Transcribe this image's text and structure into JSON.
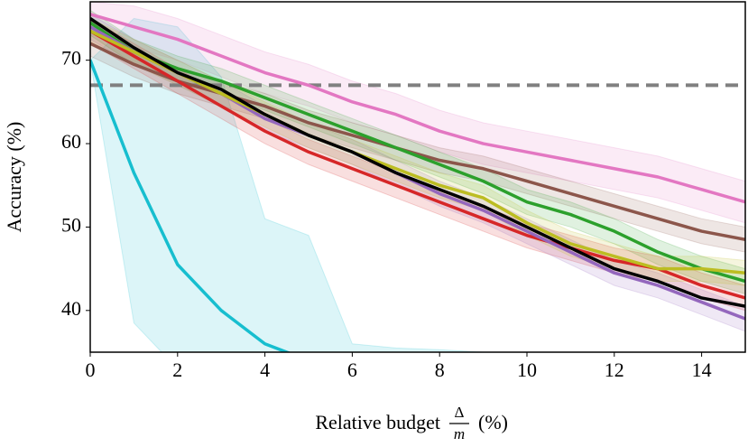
{
  "chart_data": {
    "type": "line",
    "ylabel": "Accuracy (%)",
    "xlabel": {
      "text": "Relative budget",
      "num": "Δ",
      "den": "m",
      "unit": "(%)"
    },
    "x": [
      0,
      1,
      2,
      3,
      4,
      5,
      6,
      7,
      8,
      9,
      10,
      11,
      12,
      13,
      14,
      15
    ],
    "xlim": [
      0,
      15
    ],
    "xticks": [
      0,
      2,
      4,
      6,
      8,
      10,
      12,
      14
    ],
    "ylim": [
      35,
      77
    ],
    "yticks": [
      40,
      50,
      60,
      70
    ],
    "reference_line": {
      "value": 67,
      "color": "#808080",
      "dashed": true
    },
    "series": [
      {
        "color": "#17becf",
        "values": [
          70,
          56.5,
          45.5,
          40,
          36,
          34,
          null,
          null,
          null,
          null,
          null,
          null,
          null,
          null,
          null,
          null
        ],
        "upper": [
          70,
          75,
          74,
          68,
          51,
          49,
          36,
          35.5,
          35.3,
          35,
          null,
          null,
          null,
          null,
          null,
          null
        ],
        "lower": [
          70,
          38.5,
          33,
          30,
          30,
          30,
          30,
          30,
          30,
          30,
          null,
          null,
          null,
          null,
          null,
          null
        ]
      },
      {
        "color": "#e377c2",
        "values": [
          75.5,
          74,
          72.5,
          70.5,
          68.5,
          67,
          65,
          63.5,
          61.5,
          60,
          59,
          58,
          57,
          56,
          54.5,
          53
        ],
        "upper": [
          77,
          76.5,
          75,
          73,
          71,
          69.5,
          67.5,
          66,
          64,
          62.5,
          61.5,
          60.5,
          59.5,
          58.5,
          57,
          55.5
        ],
        "lower": [
          74,
          71.5,
          70,
          68,
          66,
          64.5,
          62.5,
          61,
          59,
          57.5,
          56.5,
          55.5,
          54.5,
          53.5,
          52,
          50.5
        ]
      },
      {
        "color": "#8c564b",
        "values": [
          72,
          69.5,
          67.5,
          66,
          64.5,
          62.5,
          61,
          59.5,
          58,
          57,
          55.5,
          54,
          52.5,
          51,
          49.5,
          48.5
        ],
        "upper": [
          73.5,
          71,
          69,
          67.5,
          66,
          64,
          62.5,
          61,
          59.5,
          58.5,
          57,
          55.5,
          54,
          52.5,
          51,
          50
        ],
        "lower": [
          70.5,
          68,
          66,
          64.5,
          63,
          61,
          59.5,
          58,
          56.5,
          55.5,
          54,
          52.5,
          51,
          49.5,
          48,
          47
        ]
      },
      {
        "color": "#2ca02c",
        "values": [
          74.5,
          71,
          69,
          67.5,
          65.5,
          63.5,
          61.5,
          59.5,
          57.5,
          55.5,
          53,
          51.5,
          49.5,
          47,
          45,
          43.5
        ],
        "upper": [
          76,
          72.5,
          70.5,
          69,
          67,
          65,
          63,
          61,
          59,
          57,
          54.5,
          53,
          51,
          48.5,
          46.5,
          45
        ],
        "lower": [
          73,
          69.5,
          67.5,
          66,
          64,
          62,
          60,
          58,
          56,
          54,
          51.5,
          50,
          48,
          45.5,
          43.5,
          42
        ]
      },
      {
        "color": "#d62728",
        "values": [
          73.5,
          70.5,
          67.5,
          64.5,
          61.5,
          59,
          57,
          55,
          53,
          51,
          49,
          47.5,
          46,
          45,
          43,
          41.5
        ],
        "upper": [
          75,
          72,
          69,
          66,
          63,
          60.5,
          58.5,
          56.5,
          54.5,
          52.5,
          50.5,
          49,
          47.5,
          46.5,
          44.5,
          43
        ],
        "lower": [
          72,
          69,
          66,
          63,
          60,
          57.5,
          55.5,
          53.5,
          51.5,
          49.5,
          47.5,
          46,
          44.5,
          43.5,
          41.5,
          40
        ]
      },
      {
        "color": "#9467bd",
        "values": [
          74,
          71,
          68.5,
          66,
          63,
          61,
          59,
          56.5,
          54,
          52,
          49.5,
          47,
          44.5,
          43,
          41,
          39
        ],
        "upper": [
          75.5,
          72.5,
          70,
          67.5,
          64.5,
          62.5,
          60.5,
          58,
          55.5,
          53.5,
          51,
          48.5,
          46,
          44.5,
          42.5,
          40.5
        ],
        "lower": [
          72.5,
          69.5,
          67,
          64.5,
          61.5,
          59.5,
          57.5,
          55,
          52.5,
          50.5,
          48,
          45.5,
          43,
          41.5,
          39.5,
          37.5
        ]
      },
      {
        "color": "#bcbd22",
        "values": [
          73.5,
          71,
          68.5,
          66,
          63.5,
          61,
          59,
          57,
          55,
          53.5,
          50.5,
          48,
          46.5,
          45,
          45,
          44.5
        ],
        "upper": [
          75,
          72.5,
          70,
          67.5,
          65,
          62.5,
          60.5,
          58.5,
          56.5,
          55,
          52,
          49.5,
          48,
          46.5,
          46.5,
          46
        ],
        "lower": [
          72,
          69.5,
          67,
          64.5,
          62,
          59.5,
          57.5,
          55.5,
          53.5,
          52,
          49,
          46.5,
          45,
          43.5,
          43.5,
          43
        ]
      },
      {
        "color": "#000000",
        "values": [
          75,
          71.5,
          68.5,
          66.5,
          63.5,
          61,
          59,
          56.5,
          54.5,
          52.5,
          50,
          47.5,
          45,
          43.5,
          41.5,
          40.5
        ]
      }
    ]
  }
}
